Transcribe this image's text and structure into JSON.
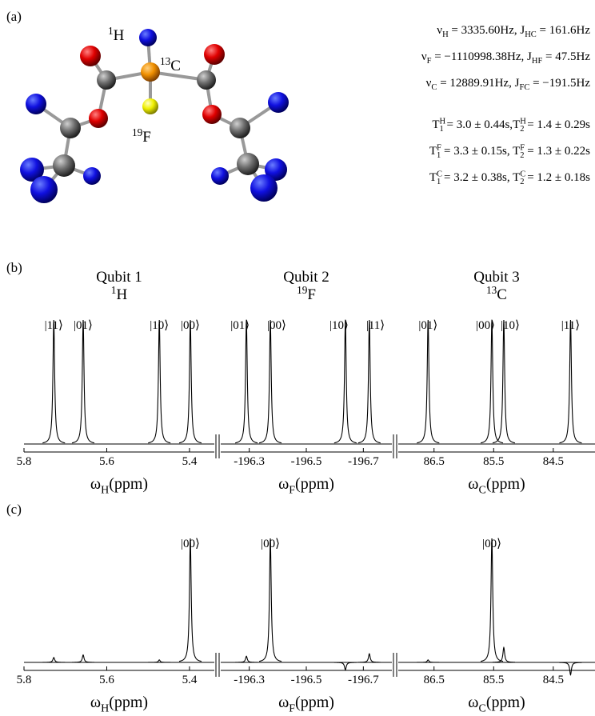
{
  "panel_labels": [
    "(a)",
    "(b)",
    "(c)"
  ],
  "molecule": {
    "labels": [
      [
        {
          "sup": "1"
        },
        "H"
      ],
      [
        {
          "sup": "13"
        },
        "C"
      ],
      [
        {
          "sup": "19"
        },
        "F"
      ]
    ]
  },
  "parameters": [
    [
      "ν",
      {
        "sub": "H"
      },
      " = 3335.60Hz, J",
      {
        "sub": "HC"
      },
      " = 161.6Hz"
    ],
    [
      "ν",
      {
        "sub": "F"
      },
      " = −1110998.38Hz, J",
      {
        "sub": "HF"
      },
      " = 47.5Hz"
    ],
    [
      "ν",
      {
        "sub": "C"
      },
      " = 12889.91Hz, J",
      {
        "sub": "FC"
      },
      " = −191.5Hz"
    ],
    [
      "T",
      {
        "sup": "H",
        "sub": "1"
      },
      " = 3.0 ± 0.44s,T",
      {
        "sup": "H",
        "sub": "2"
      },
      " = 1.4 ± 0.29s"
    ],
    [
      "T",
      {
        "sup": "F",
        "sub": "1"
      },
      " = 3.3 ± 0.15s, T",
      {
        "sup": "F",
        "sub": "2"
      },
      " = 1.3 ± 0.22s"
    ],
    [
      "T",
      {
        "sup": "C",
        "sub": "1"
      },
      " = 3.2 ± 0.38s, T",
      {
        "sup": "C",
        "sub": "2"
      },
      " = 1.2 ± 0.18s"
    ]
  ],
  "qubits": [
    {
      "name": "Qubit 1",
      "nucleus": [
        {
          "sup": "1"
        },
        "H"
      ]
    },
    {
      "name": "Qubit 2",
      "nucleus": [
        {
          "sup": "19"
        },
        "F"
      ]
    },
    {
      "name": "Qubit 3",
      "nucleus": [
        {
          "sup": "13"
        },
        "C"
      ]
    }
  ],
  "chart_data": [
    {
      "type": "spectrum",
      "x": [
        5.728,
        5.657,
        5.473,
        5.398
      ],
      "values": [
        1.0,
        1.0,
        1.0,
        1.0
      ],
      "peak_labels": [
        "|11⟩",
        "|01⟩",
        "|10⟩",
        "|00⟩"
      ],
      "xlim": [
        5.8,
        5.34
      ],
      "xticks": [
        5.8,
        5.6,
        5.4
      ],
      "xlabel": [
        "ω",
        {
          "sub": "H"
        },
        "(ppm)"
      ]
    },
    {
      "type": "spectrum",
      "x": [
        -196.29,
        -196.374,
        -196.637,
        -196.721
      ],
      "values": [
        1.0,
        1.0,
        1.0,
        1.0
      ],
      "peak_labels": [
        "|01⟩",
        "|00⟩",
        "|10⟩",
        "|11⟩"
      ],
      "xlim": [
        -196.2,
        -196.8
      ],
      "xticks": [
        -196.3,
        -196.5,
        -196.7
      ],
      "xlabel": [
        "ω",
        {
          "sub": "F"
        },
        "(ppm)"
      ]
    },
    {
      "type": "spectrum",
      "x": [
        86.6,
        85.53,
        85.33,
        84.21
      ],
      "values": [
        1.0,
        1.0,
        1.0,
        1.0
      ],
      "peak_labels": [
        "|01⟩",
        "|00⟩",
        "|10⟩",
        "|11⟩"
      ],
      "xlim": [
        87.1,
        83.8
      ],
      "xticks": [
        86.5,
        85.5,
        84.5
      ],
      "xlabel": [
        "ω",
        {
          "sub": "C"
        },
        "(ppm)"
      ]
    },
    {
      "type": "spectrum",
      "x": [
        5.728,
        5.657,
        5.473,
        5.398
      ],
      "values": [
        0.04,
        0.06,
        0.02,
        1.0
      ],
      "peak_labels": [
        null,
        null,
        null,
        "|00⟩"
      ],
      "xlim": [
        5.8,
        5.34
      ],
      "xticks": [
        5.8,
        5.6,
        5.4
      ],
      "xlabel": [
        "ω",
        {
          "sub": "H"
        },
        "(ppm)"
      ]
    },
    {
      "type": "spectrum",
      "x": [
        -196.29,
        -196.374,
        -196.637,
        -196.721
      ],
      "values": [
        0.05,
        1.0,
        -0.06,
        0.07
      ],
      "peak_labels": [
        null,
        "|00⟩",
        null,
        null
      ],
      "xlim": [
        -196.2,
        -196.8
      ],
      "xticks": [
        -196.3,
        -196.5,
        -196.7
      ],
      "xlabel": [
        "ω",
        {
          "sub": "F"
        },
        "(ppm)"
      ]
    },
    {
      "type": "spectrum",
      "x": [
        86.6,
        85.53,
        85.33,
        84.21
      ],
      "values": [
        0.02,
        1.0,
        0.12,
        -0.1
      ],
      "peak_labels": [
        null,
        "|00⟩",
        null,
        null
      ],
      "xlim": [
        87.1,
        83.8
      ],
      "xticks": [
        86.5,
        85.5,
        84.5
      ],
      "xlabel": [
        "ω",
        {
          "sub": "C"
        },
        "(ppm)"
      ]
    }
  ]
}
